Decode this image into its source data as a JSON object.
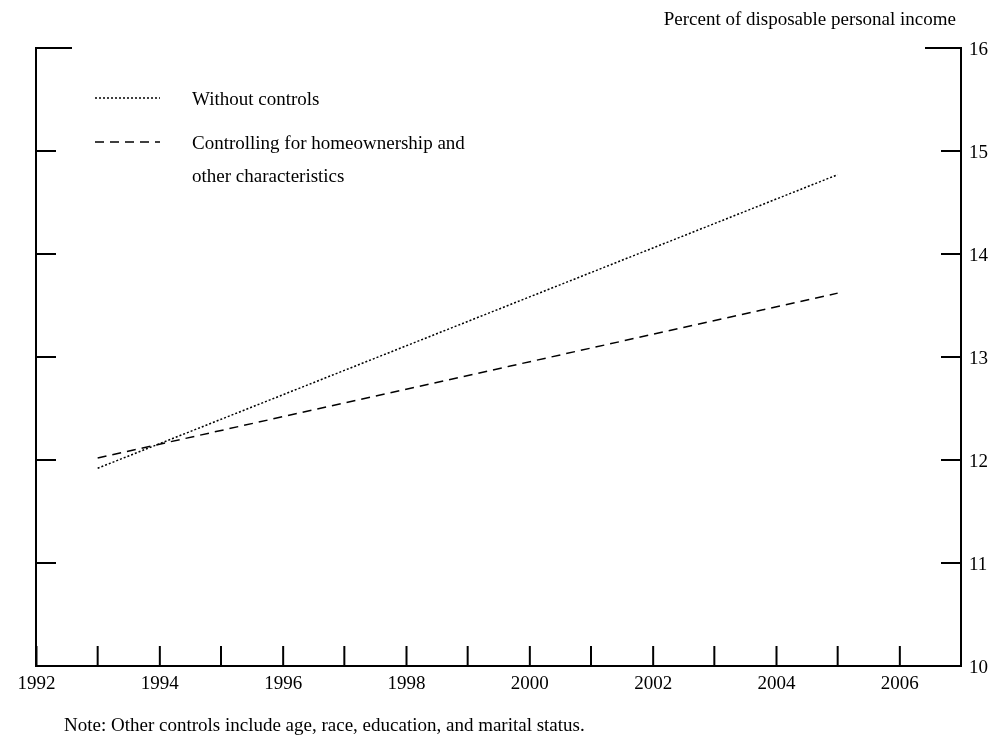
{
  "chart_data": {
    "type": "line",
    "ylabel": "Percent of disposable personal income",
    "x": [
      1993,
      2005
    ],
    "series": [
      {
        "name": "Without controls",
        "color": "#000000",
        "values": [
          11.92,
          14.77
        ],
        "line_style": "dotted"
      },
      {
        "name": "Controlling for homeownership and other characteristics",
        "color": "#000000",
        "values": [
          12.02,
          13.62
        ],
        "line_style": "dashed"
      }
    ],
    "xlim": [
      1992,
      2007
    ],
    "xticks": [
      1992,
      1994,
      1996,
      1998,
      2000,
      2002,
      2004,
      2006
    ],
    "ylim": [
      10,
      16
    ],
    "yticks": [
      10,
      11,
      12,
      13,
      14,
      15,
      16
    ],
    "grid": false,
    "legend": "top left",
    "annotations": [
      "Note: Other controls include age, race, education, and marital status."
    ]
  }
}
